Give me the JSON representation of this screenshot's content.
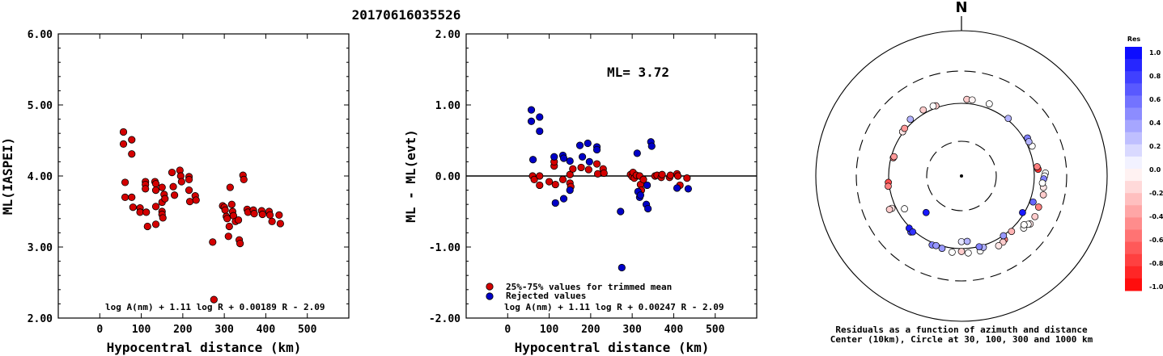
{
  "page": {
    "title": "20170616035526"
  },
  "chart_data": [
    {
      "id": "left",
      "type": "scatter",
      "ylabel": "ML(IASPEI)",
      "xlabel": "Hypocentral distance (km)",
      "xlim": [
        -100,
        600
      ],
      "ylim": [
        2.0,
        6.0
      ],
      "x_ticks": [
        "0",
        "100",
        "200",
        "300",
        "400",
        "500"
      ],
      "y_ticks": [
        "2.00",
        "3.00",
        "4.00",
        "5.00",
        "6.00"
      ],
      "formula": "log A(nm) + 1.11 log R + 0.00189 R - 2.09",
      "colors": {
        "point": "#d40000"
      },
      "points": [
        [
          57,
          4.62
        ],
        [
          57,
          4.45
        ],
        [
          61,
          3.91
        ],
        [
          61,
          3.7
        ],
        [
          77,
          4.51
        ],
        [
          77,
          4.31
        ],
        [
          77,
          3.7
        ],
        [
          80,
          3.56
        ],
        [
          97,
          3.55
        ],
        [
          97,
          3.49
        ],
        [
          110,
          3.92
        ],
        [
          110,
          3.88
        ],
        [
          110,
          3.82
        ],
        [
          112,
          3.49
        ],
        [
          115,
          3.29
        ],
        [
          133,
          3.92
        ],
        [
          135,
          3.89
        ],
        [
          135,
          3.8
        ],
        [
          135,
          3.57
        ],
        [
          135,
          3.32
        ],
        [
          150,
          3.84
        ],
        [
          150,
          3.63
        ],
        [
          150,
          3.5
        ],
        [
          150,
          3.46
        ],
        [
          152,
          3.41
        ],
        [
          155,
          3.74
        ],
        [
          157,
          3.68
        ],
        [
          174,
          4.05
        ],
        [
          177,
          3.85
        ],
        [
          180,
          3.73
        ],
        [
          193,
          4.08
        ],
        [
          195,
          4.0
        ],
        [
          197,
          3.92
        ],
        [
          215,
          3.99
        ],
        [
          215,
          3.95
        ],
        [
          215,
          3.8
        ],
        [
          217,
          3.64
        ],
        [
          230,
          3.72
        ],
        [
          232,
          3.66
        ],
        [
          272,
          3.07
        ],
        [
          275,
          2.26
        ],
        [
          296,
          3.58
        ],
        [
          300,
          3.56
        ],
        [
          302,
          3.52
        ],
        [
          305,
          3.43
        ],
        [
          307,
          3.4
        ],
        [
          310,
          3.15
        ],
        [
          312,
          3.29
        ],
        [
          314,
          3.84
        ],
        [
          318,
          3.6
        ],
        [
          320,
          3.5
        ],
        [
          322,
          3.44
        ],
        [
          327,
          3.36
        ],
        [
          334,
          3.38
        ],
        [
          336,
          3.1
        ],
        [
          338,
          3.05
        ],
        [
          345,
          4.01
        ],
        [
          347,
          3.95
        ],
        [
          355,
          3.53
        ],
        [
          357,
          3.49
        ],
        [
          370,
          3.52
        ],
        [
          372,
          3.47
        ],
        [
          390,
          3.51
        ],
        [
          392,
          3.46
        ],
        [
          408,
          3.5
        ],
        [
          410,
          3.45
        ],
        [
          415,
          3.36
        ],
        [
          432,
          3.45
        ],
        [
          435,
          3.33
        ]
      ]
    },
    {
      "id": "middle",
      "type": "scatter",
      "ylabel": "ML - ML(evt)",
      "xlabel": "Hypocentral distance (km)",
      "xlim": [
        -100,
        600
      ],
      "ylim": [
        -2.0,
        2.0
      ],
      "x_ticks": [
        "0",
        "100",
        "200",
        "300",
        "400",
        "500"
      ],
      "y_ticks": [
        "-2.00",
        "-1.00",
        "0.00",
        "1.00",
        "2.00"
      ],
      "annotation": "ML= 3.72",
      "formula": "log A(nm) + 1.11 log R + 0.00247 R - 2.09",
      "legend": [
        "25%-75% values for trimmed mean",
        "Rejected values"
      ],
      "colors": {
        "used": "#d40000",
        "rejected": "#0000c8"
      },
      "series": [
        {
          "name": "25%-75% values for trimmed mean",
          "points": [
            [
              60,
              0.0
            ],
            [
              64,
              -0.05
            ],
            [
              77,
              0.0
            ],
            [
              77,
              -0.13
            ],
            [
              100,
              -0.08
            ],
            [
              112,
              0.14
            ],
            [
              112,
              0.2
            ],
            [
              115,
              -0.12
            ],
            [
              133,
              -0.05
            ],
            [
              150,
              0.02
            ],
            [
              150,
              -0.1
            ],
            [
              152,
              -0.15
            ],
            [
              157,
              0.1
            ],
            [
              177,
              0.12
            ],
            [
              195,
              0.09
            ],
            [
              215,
              0.17
            ],
            [
              217,
              0.03
            ],
            [
              230,
              0.1
            ],
            [
              232,
              0.04
            ],
            [
              296,
              0.02
            ],
            [
              300,
              -0.01
            ],
            [
              302,
              0.05
            ],
            [
              305,
              -0.03
            ],
            [
              310,
              0.01
            ],
            [
              318,
              0.0
            ],
            [
              320,
              -0.12
            ],
            [
              322,
              -0.2
            ],
            [
              327,
              -0.05
            ],
            [
              355,
              0.0
            ],
            [
              360,
              0.01
            ],
            [
              370,
              -0.02
            ],
            [
              372,
              0.02
            ],
            [
              390,
              -0.02
            ],
            [
              392,
              0.01
            ],
            [
              408,
              0.03
            ],
            [
              410,
              0.0
            ],
            [
              415,
              -0.13
            ],
            [
              432,
              -0.03
            ]
          ]
        },
        {
          "name": "Rejected values",
          "points": [
            [
              57,
              0.93
            ],
            [
              57,
              0.77
            ],
            [
              61,
              0.23
            ],
            [
              77,
              0.83
            ],
            [
              77,
              0.63
            ],
            [
              112,
              0.27
            ],
            [
              115,
              -0.38
            ],
            [
              133,
              0.29
            ],
            [
              135,
              0.25
            ],
            [
              135,
              -0.32
            ],
            [
              150,
              0.21
            ],
            [
              150,
              -0.2
            ],
            [
              174,
              0.43
            ],
            [
              180,
              0.27
            ],
            [
              193,
              0.46
            ],
            [
              197,
              0.2
            ],
            [
              215,
              0.41
            ],
            [
              215,
              0.37
            ],
            [
              272,
              -0.5
            ],
            [
              275,
              -1.29
            ],
            [
              312,
              0.32
            ],
            [
              314,
              -0.22
            ],
            [
              318,
              -0.3
            ],
            [
              320,
              -0.27
            ],
            [
              334,
              -0.4
            ],
            [
              336,
              -0.13
            ],
            [
              338,
              -0.46
            ],
            [
              345,
              0.48
            ],
            [
              347,
              0.42
            ],
            [
              408,
              -0.17
            ],
            [
              435,
              -0.18
            ]
          ]
        }
      ]
    },
    {
      "id": "right",
      "type": "polar",
      "north_label": "N",
      "caption_line1": "Residuals as a function of azimuth and distance",
      "caption_line2": "Center (10km), Circle at 30, 100, 300 and 1000 km",
      "colorbar": {
        "title": "Res",
        "labels": [
          "1.0",
          "0.8",
          "0.6",
          "0.4",
          "0.2",
          "0.0",
          "-0.2",
          "-0.4",
          "-0.6",
          "-0.8",
          "-1.0"
        ],
        "max_color": "#0000ff",
        "min_color": "#ff0000",
        "mid_color": "#ffffff"
      },
      "points": [
        [
          4,
          115,
          -0.2
        ],
        [
          8,
          115,
          -0.05
        ],
        [
          21,
          117,
          0.0
        ],
        [
          67,
          114,
          0.0
        ],
        [
          60,
          112,
          0.5
        ],
        [
          63,
          110,
          0.3
        ],
        [
          39,
          105,
          0.3
        ],
        [
          85,
          115,
          -0.8
        ],
        [
          83,
          112,
          -0.5
        ],
        [
          88,
          146,
          0.0
        ],
        [
          90,
          142,
          0.0
        ],
        [
          98,
          140,
          -0.1
        ],
        [
          92,
          138,
          0.5
        ],
        [
          95,
          133,
          0.0
        ],
        [
          103,
          146,
          -0.2
        ],
        [
          112,
          142,
          -0.5
        ],
        [
          119,
          146,
          -0.2
        ],
        [
          125,
          145,
          -0.1
        ],
        [
          126,
          138,
          0.0
        ],
        [
          130,
          133,
          0.0
        ],
        [
          128,
          125,
          0.0
        ],
        [
          110,
          112,
          0.6
        ],
        [
          121,
          95,
          0.9
        ],
        [
          138,
          107,
          -0.3
        ],
        [
          146,
          115,
          -0.5
        ],
        [
          148,
          120,
          -0.2
        ],
        [
          152,
          124,
          -0.1
        ],
        [
          145,
          101,
          0.4
        ],
        [
          166,
          117,
          0.0
        ],
        [
          175,
          117,
          0.0
        ],
        [
          187,
          115,
          0.0
        ],
        [
          180,
          110,
          -0.2
        ],
        [
          163,
          107,
          0.3
        ],
        [
          166,
          101,
          0.5
        ],
        [
          195,
          108,
          0.4
        ],
        [
          203,
          108,
          0.5
        ],
        [
          200,
          105,
          0.4
        ],
        [
          222,
          110,
          0.7
        ],
        [
          225,
          104,
          0.9
        ],
        [
          221,
          105,
          0.8
        ],
        [
          180,
          80,
          0.1
        ],
        [
          175,
          80,
          0.3
        ],
        [
          224,
          50,
          0.9
        ],
        [
          245,
          114,
          -0.1
        ],
        [
          240,
          80,
          0.0
        ],
        [
          245,
          125,
          -0.2
        ],
        [
          265,
          102,
          -0.7
        ],
        [
          262,
          104,
          -0.5
        ],
        [
          285,
          93,
          -0.5
        ],
        [
          286,
          92,
          -0.4
        ],
        [
          307,
          103,
          0.2
        ],
        [
          307,
          103,
          -0.1
        ],
        [
          310,
          105,
          -0.4
        ],
        [
          318,
          113,
          0.3
        ],
        [
          330,
          113,
          -0.2
        ],
        [
          340,
          107,
          -0.2
        ],
        [
          338,
          110,
          0.0
        ]
      ]
    }
  ]
}
